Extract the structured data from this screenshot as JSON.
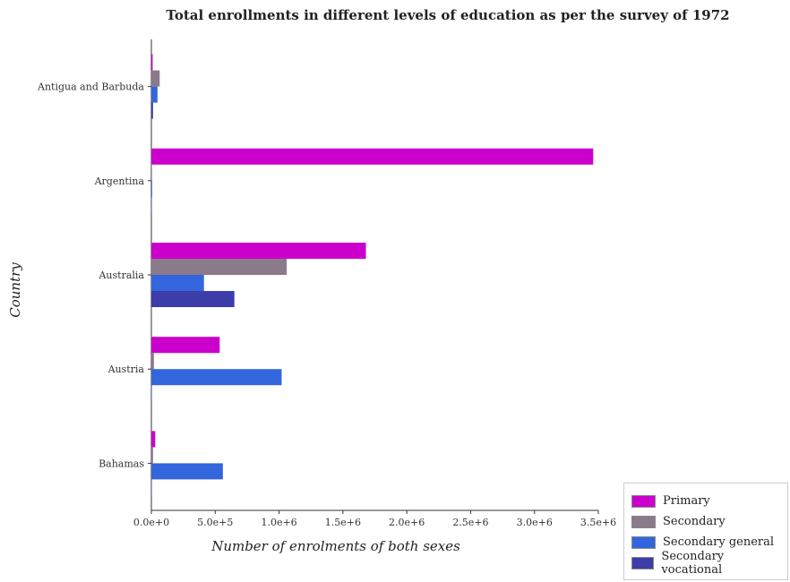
{
  "title": "Total enrollments in different levels of education as per the survey of 1972",
  "chart_data": {
    "type": "bar",
    "orientation": "horizontal",
    "title": "Total enrollments in different levels of education as per the survey of 1972",
    "xlabel": "Number of enrolments of both sexes",
    "ylabel": "Country",
    "xlim": [
      0,
      3500000
    ],
    "xticks": [
      0,
      500000,
      1000000,
      1500000,
      2000000,
      2500000,
      3000000,
      3500000
    ],
    "xtick_labels": [
      "0.0e+0",
      "5.0e+5",
      "1.0e+6",
      "1.5e+6",
      "2.0e+6",
      "2.5e+6",
      "3.0e+6",
      "3.5e+6"
    ],
    "categories": [
      "Antigua and Barbuda",
      "Argentina",
      "Australia",
      "Austria",
      "Bahamas"
    ],
    "series": [
      {
        "name": "Primary",
        "color": "#cc00cc",
        "values": [
          10000,
          3460000,
          1680000,
          535000,
          30000
        ]
      },
      {
        "name": "Secondary",
        "color": "#8a7a8a",
        "values": [
          65000,
          5000,
          1060000,
          20000,
          13000
        ]
      },
      {
        "name": "Secondary general",
        "color": "#3366dd",
        "values": [
          48000,
          6000,
          412000,
          1020000,
          560000
        ]
      },
      {
        "name": "Secondary vocational",
        "color": "#3d3daa",
        "values": [
          13000,
          1500,
          650000,
          1000,
          500
        ]
      }
    ],
    "grid": false,
    "legend_position": "bottom-right"
  }
}
